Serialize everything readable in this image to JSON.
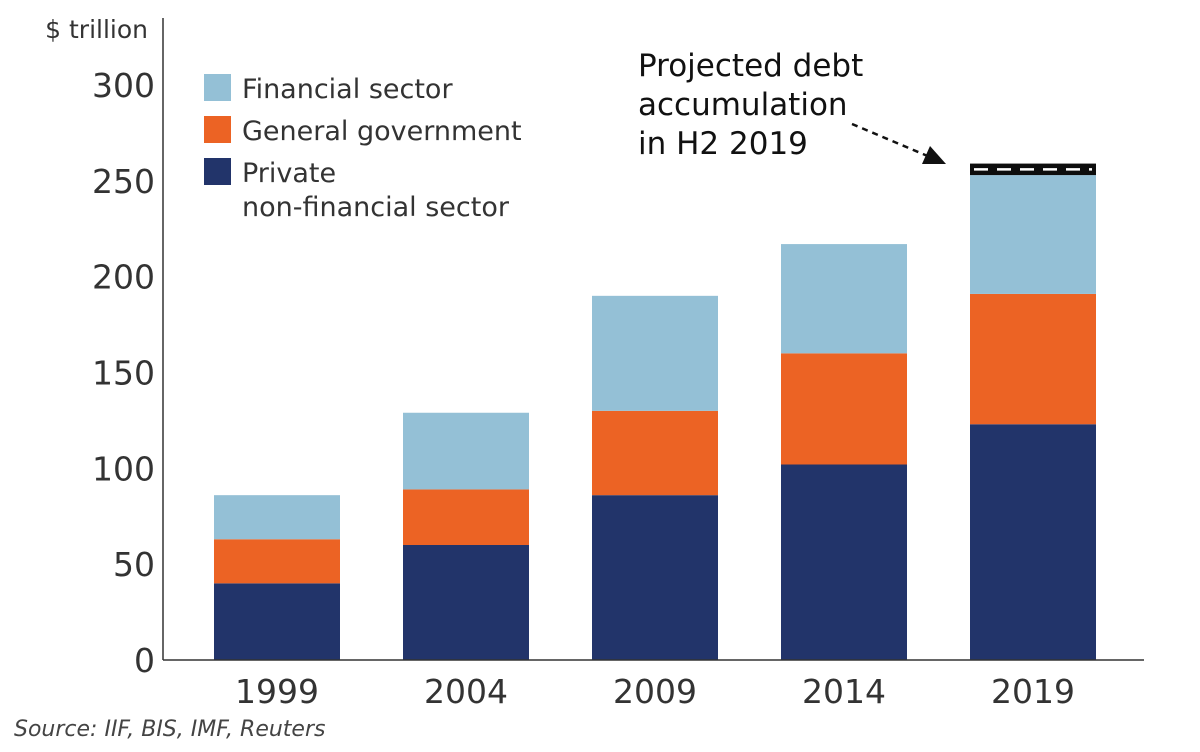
{
  "chart_data": {
    "type": "bar",
    "stacked": true,
    "unit_label": "$ trillion",
    "categories": [
      "1999",
      "2004",
      "2009",
      "2014",
      "2019"
    ],
    "series": [
      {
        "name": "Private non-financial sector",
        "color": "#22346a",
        "values": [
          40,
          60,
          86,
          102,
          123
        ]
      },
      {
        "name": "General government",
        "color": "#ec6324",
        "values": [
          23,
          29,
          44,
          58,
          68
        ]
      },
      {
        "name": "Financial sector",
        "color": "#94c0d6",
        "values": [
          23,
          40,
          60,
          57,
          62
        ]
      }
    ],
    "projection": {
      "category": "2019",
      "from": 253,
      "to": 259,
      "color": "#0d0d0d"
    },
    "legend": {
      "placement": "top-left",
      "items": [
        {
          "label_lines": [
            "Financial sector"
          ],
          "color": "#94c0d6"
        },
        {
          "label_lines": [
            "General government"
          ],
          "color": "#ec6324"
        },
        {
          "label_lines": [
            "Private",
            "non-financial sector"
          ],
          "color": "#22346a"
        }
      ]
    },
    "annotation": {
      "lines": [
        "Projected debt",
        "accumulation",
        "in H2 2019"
      ]
    },
    "ylim": [
      0,
      300
    ],
    "yticks": [
      0,
      50,
      100,
      150,
      200,
      250,
      300
    ],
    "grid": false
  },
  "source": "Source: IIF, BIS, IMF, Reuters"
}
